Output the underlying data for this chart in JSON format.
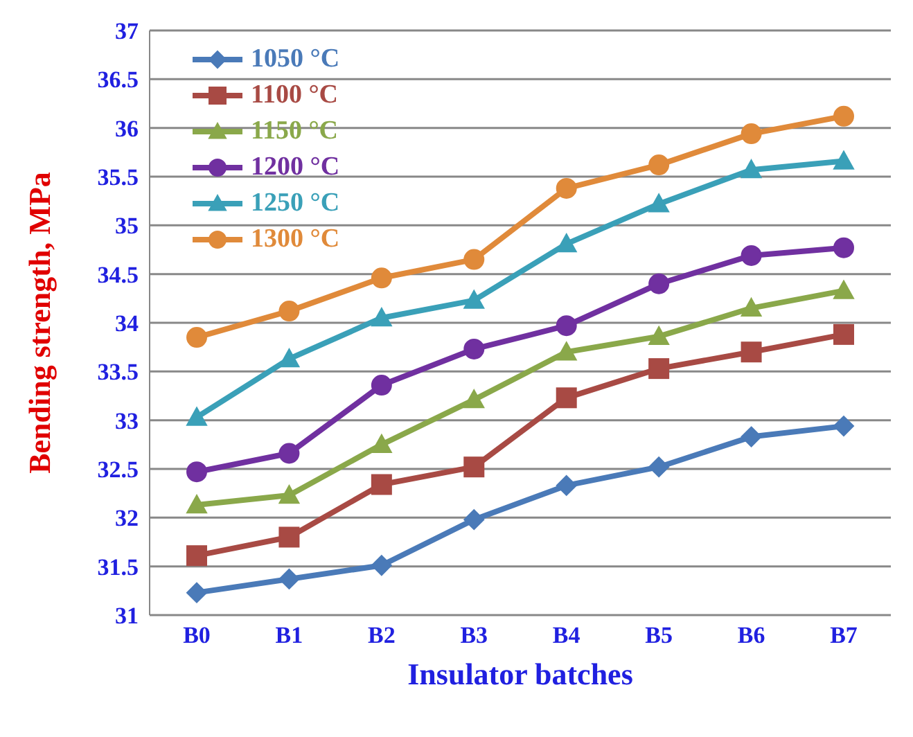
{
  "chart_data": {
    "type": "line",
    "xlabel": "Insulator batches",
    "ylabel": "Bending strength, MPa",
    "categories": [
      "B0",
      "B1",
      "B2",
      "B3",
      "B4",
      "B5",
      "B6",
      "B7"
    ],
    "series": [
      {
        "name": "1050 °C",
        "color": "#4a7ab8",
        "marker": "diamond",
        "values": [
          31.23,
          31.37,
          31.51,
          31.98,
          32.33,
          32.52,
          32.83,
          32.94
        ]
      },
      {
        "name": "1100 °C",
        "color": "#a84a44",
        "marker": "square",
        "values": [
          31.61,
          31.8,
          32.34,
          32.52,
          33.23,
          33.53,
          33.7,
          33.88
        ]
      },
      {
        "name": "1150 °C",
        "color": "#8aa84a",
        "marker": "triangle",
        "values": [
          32.13,
          32.23,
          32.75,
          33.21,
          33.7,
          33.86,
          34.15,
          34.33
        ]
      },
      {
        "name": "1200 °C",
        "color": "#7030a0",
        "marker": "circle",
        "values": [
          32.47,
          32.66,
          33.36,
          33.73,
          33.97,
          34.4,
          34.69,
          34.77
        ]
      },
      {
        "name": "1250 °C",
        "color": "#3aa0b8",
        "marker": "triangle",
        "values": [
          33.03,
          33.63,
          34.05,
          34.23,
          34.81,
          35.22,
          35.57,
          35.66
        ]
      },
      {
        "name": "1300 °C",
        "color": "#e08a3a",
        "marker": "circle",
        "values": [
          33.85,
          34.12,
          34.46,
          34.65,
          35.38,
          35.62,
          35.94,
          36.12
        ]
      }
    ],
    "ylim": [
      31,
      37
    ],
    "yticks": [
      31,
      31.5,
      32,
      32.5,
      33,
      33.5,
      34,
      34.5,
      35,
      35.5,
      36,
      36.5,
      37
    ],
    "grid": "y",
    "legend": "top left",
    "line_style": "solid"
  }
}
